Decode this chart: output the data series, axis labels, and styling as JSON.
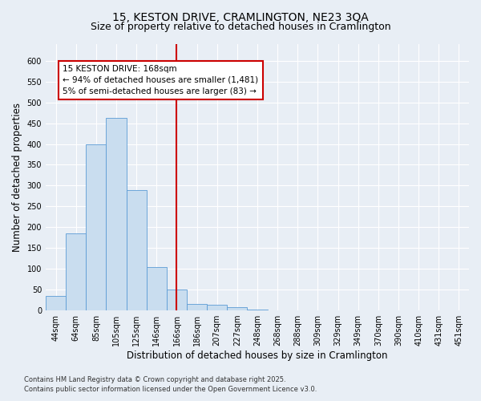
{
  "title1": "15, KESTON DRIVE, CRAMLINGTON, NE23 3QA",
  "title2": "Size of property relative to detached houses in Cramlington",
  "xlabel": "Distribution of detached houses by size in Cramlington",
  "ylabel": "Number of detached properties",
  "bin_labels": [
    "44sqm",
    "64sqm",
    "85sqm",
    "105sqm",
    "125sqm",
    "146sqm",
    "166sqm",
    "186sqm",
    "207sqm",
    "227sqm",
    "248sqm",
    "268sqm",
    "288sqm",
    "309sqm",
    "329sqm",
    "349sqm",
    "370sqm",
    "390sqm",
    "410sqm",
    "431sqm",
    "451sqm"
  ],
  "bar_values": [
    35,
    185,
    400,
    462,
    290,
    105,
    50,
    15,
    13,
    8,
    2,
    0,
    0,
    1,
    0,
    0,
    1,
    0,
    0,
    0,
    1
  ],
  "bar_color": "#c9ddef",
  "bar_edge_color": "#5b9bd5",
  "vline_x": 6,
  "vline_color": "#cc0000",
  "annotation_text": "15 KESTON DRIVE: 168sqm\n← 94% of detached houses are smaller (1,481)\n5% of semi-detached houses are larger (83) →",
  "annotation_box_color": "#ffffff",
  "annotation_box_edge": "#cc0000",
  "ylim": [
    0,
    640
  ],
  "yticks": [
    0,
    50,
    100,
    150,
    200,
    250,
    300,
    350,
    400,
    450,
    500,
    550,
    600
  ],
  "footer1": "Contains HM Land Registry data © Crown copyright and database right 2025.",
  "footer2": "Contains public sector information licensed under the Open Government Licence v3.0.",
  "background_color": "#e8eef5",
  "plot_background": "#e8eef5",
  "grid_color": "#ffffff",
  "title1_fontsize": 10,
  "title2_fontsize": 9,
  "tick_fontsize": 7,
  "label_fontsize": 8.5,
  "footer_fontsize": 6,
  "ann_fontsize": 7.5
}
